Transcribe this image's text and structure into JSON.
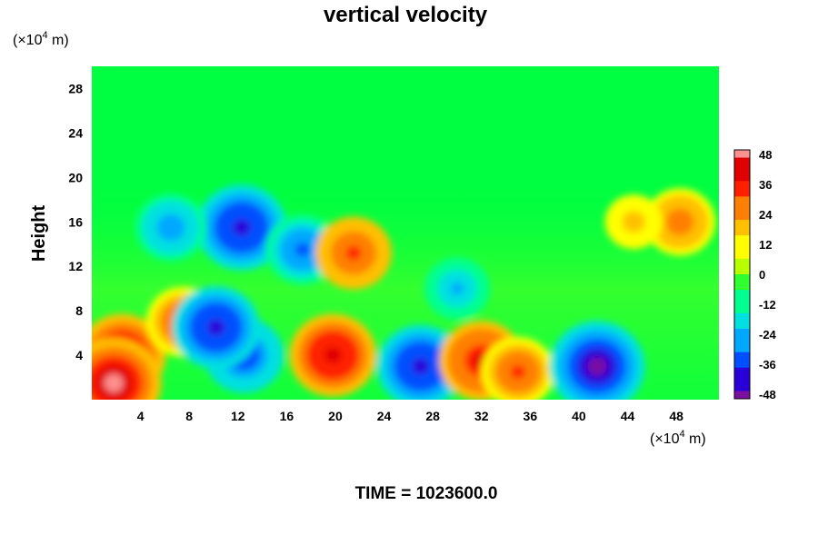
{
  "chart_data": {
    "type": "heatmap",
    "title": "vertical velocity",
    "ylabel": "Height",
    "xlabel": "",
    "x_unit": {
      "prefix": "(×10",
      "exp": "4",
      "suffix": " m)"
    },
    "y_unit": {
      "prefix": "(×10",
      "exp": "4",
      "suffix": " m)"
    },
    "xlim": [
      0,
      51.5
    ],
    "ylim": [
      0,
      30
    ],
    "xticks": [
      4,
      8,
      12,
      16,
      20,
      24,
      28,
      32,
      36,
      40,
      44,
      48
    ],
    "yticks": [
      4,
      8,
      12,
      16,
      20,
      24,
      28
    ],
    "colorbar": {
      "ticks": [
        48,
        36,
        24,
        12,
        0,
        -12,
        -24,
        -36,
        -48
      ],
      "range": [
        -48,
        48
      ],
      "colors": [
        "#7a0fa0",
        "#2a00d8",
        "#0050ff",
        "#00a8ff",
        "#00e0e0",
        "#00ff90",
        "#30ff30",
        "#b8ff00",
        "#ffff00",
        "#ffc000",
        "#ff8000",
        "#ff2000",
        "#e00000",
        "#ff9090"
      ]
    },
    "features": [
      {
        "x": 2.5,
        "y": 4.0,
        "value": 40
      },
      {
        "x": 1.8,
        "y": 1.5,
        "value": 46
      },
      {
        "x": 7.5,
        "y": 7.0,
        "value": 30
      },
      {
        "x": 12.5,
        "y": 4.0,
        "value": -34
      },
      {
        "x": 10.2,
        "y": 6.5,
        "value": -40
      },
      {
        "x": 12.3,
        "y": 15.5,
        "value": -42
      },
      {
        "x": 17.3,
        "y": 13.5,
        "value": -30
      },
      {
        "x": 19.8,
        "y": 4.0,
        "value": 40
      },
      {
        "x": 21.5,
        "y": 13.2,
        "value": 32
      },
      {
        "x": 27.0,
        "y": 3.0,
        "value": -40
      },
      {
        "x": 32.0,
        "y": 3.5,
        "value": 38
      },
      {
        "x": 35.0,
        "y": 2.5,
        "value": 30
      },
      {
        "x": 41.5,
        "y": 3.0,
        "value": -46
      },
      {
        "x": 48.3,
        "y": 16.0,
        "value": 28
      },
      {
        "x": 6.5,
        "y": 15.5,
        "value": -28
      },
      {
        "x": 30.0,
        "y": 10.0,
        "value": -24
      },
      {
        "x": 44.5,
        "y": 16.0,
        "value": 18
      }
    ]
  },
  "footer": {
    "label": "TIME = 1023600.0"
  }
}
